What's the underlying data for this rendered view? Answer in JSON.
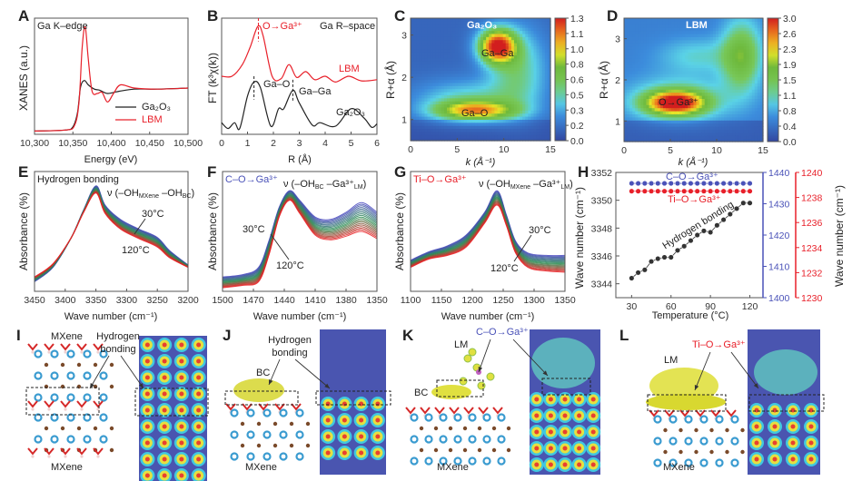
{
  "panels": {
    "A": {
      "letter": "A",
      "title": "Ga K–edge",
      "ylabel": "XANES (a.u.)",
      "xlabel": "Energy (eV)",
      "legend": [
        "Ga₂O₃",
        "LBM"
      ]
    },
    "B": {
      "letter": "B",
      "title": "Ga R–space",
      "ylabel": "FT (k³χ(k))",
      "xlabel": "R (Å)",
      "ann_o_ga": "O→Ga³⁺",
      "ann_lbm": "LBM",
      "ann_gao": "Ga–O",
      "ann_gaga": "Ga–Ga",
      "ann_ga2o3": "Ga₂O₃"
    },
    "C": {
      "letter": "C",
      "label": "Ga₂O₃",
      "ylabel": "R+α (Å)",
      "xlabel": "k (Å⁻¹)",
      "ann_gaga": "Ga–Ga",
      "ann_gao": "Ga–O"
    },
    "D": {
      "letter": "D",
      "label": "LBM",
      "ylabel": "R+α (Å)",
      "xlabel": "k (Å⁻¹)",
      "ann": "O→Ga³⁺"
    },
    "E": {
      "letter": "E",
      "title": "Hydrogen bonding",
      "ylabel": "Absorbance (%)",
      "xlabel": "Wave number (cm⁻¹)",
      "nu": {
        "pre": "ν (–OH",
        "s1": "MXene",
        "mid": " –OH",
        "s2": "BC",
        "post": ")"
      },
      "t_hi": "30°C",
      "t_lo": "120°C"
    },
    "F": {
      "letter": "F",
      "title": "C–O→Ga³⁺",
      "ylabel": "Absorbance (%)",
      "xlabel": "Wave number (cm⁻¹)",
      "nu": {
        "pre": "ν (–OH",
        "s1": "BC",
        "mid": " –Ga³⁺",
        "s2": "LM",
        "post": ")"
      },
      "t_hi": "30°C",
      "t_lo": "120°C"
    },
    "G": {
      "letter": "G",
      "title": "Ti–O→Ga³⁺",
      "ylabel": "Absorbance (%)",
      "xlabel": "Wave number (cm⁻¹)",
      "nu": {
        "pre": "ν (–OH",
        "s1": "MXene",
        "mid": " –Ga³⁺",
        "s2": "LM",
        "post": ")"
      },
      "t_hi": "30°C",
      "t_lo": "120°C"
    },
    "H": {
      "letter": "H",
      "ylabel_left": "Wave number (cm⁻¹)",
      "ylabel_right": "Wave number (cm⁻¹)",
      "xlabel": "Temperature (°C)",
      "ann_co": "C–O→Ga³⁺",
      "ann_tio": "Ti–O→Ga³⁺",
      "ann_hb": "Hydrogen bonding"
    },
    "I": {
      "letter": "I",
      "mxene_top": "MXene",
      "hb": "Hydrogen bonding",
      "mxene_bottom": "MXene"
    },
    "J": {
      "letter": "J",
      "hb": "Hydrogen bonding",
      "bc": "BC",
      "mxene": "MXene"
    },
    "K": {
      "letter": "K",
      "lm": "LM",
      "co": "C–O→Ga³⁺",
      "bc": "BC",
      "mxene": "MXene"
    },
    "L": {
      "letter": "L",
      "lm": "LM",
      "tio": "Ti–O→Ga³⁺",
      "mxene": "MXene"
    }
  },
  "colors": {
    "red": "#e8202a",
    "blue": "#4a52b8",
    "black": "#222222",
    "green": "#2e8b57"
  },
  "chart_data": [
    {
      "panel": "A",
      "type": "line",
      "xlim": [
        10300,
        10500
      ],
      "ylim": [
        0,
        1.08
      ],
      "xticks": [
        10300,
        10350,
        10400,
        10450,
        10500
      ],
      "xtick_labels": [
        "10,300",
        "10,350",
        "10,400",
        "10,450",
        "10,500"
      ],
      "series": [
        {
          "name": "Ga₂O₃",
          "color": "#222222",
          "x": [
            10300,
            10340,
            10350,
            10356,
            10360,
            10365,
            10370,
            10378,
            10385,
            10395,
            10410,
            10430,
            10460,
            10500
          ],
          "y": [
            0.03,
            0.04,
            0.07,
            0.2,
            0.44,
            0.5,
            0.46,
            0.42,
            0.41,
            0.38,
            0.4,
            0.42,
            0.42,
            0.43
          ]
        },
        {
          "name": "LBM",
          "color": "#e8202a",
          "x": [
            10300,
            10340,
            10352,
            10358,
            10362,
            10366,
            10370,
            10375,
            10382,
            10388,
            10395,
            10403,
            10412,
            10430,
            10460,
            10500
          ],
          "y": [
            0.03,
            0.04,
            0.08,
            0.3,
            0.8,
            1.0,
            0.7,
            0.4,
            0.38,
            0.39,
            0.3,
            0.38,
            0.46,
            0.43,
            0.42,
            0.43
          ]
        }
      ]
    },
    {
      "panel": "B",
      "type": "line",
      "xlim": [
        0,
        6
      ],
      "ylim": [
        0,
        1.0
      ],
      "xticks": [
        0,
        1,
        2,
        3,
        4,
        5,
        6
      ],
      "xtick_labels": [
        "0",
        "1",
        "2",
        "3",
        "4",
        "5",
        "6"
      ],
      "series": [
        {
          "name": "LBM",
          "color": "#e8202a",
          "x": [
            0,
            0.4,
            0.8,
            1.1,
            1.4,
            1.6,
            1.95,
            2.3,
            2.6,
            2.9,
            3.25,
            3.6,
            4.0,
            4.4,
            4.9,
            5.4,
            6.0
          ],
          "y": [
            0.5,
            0.5,
            0.6,
            0.75,
            0.93,
            0.85,
            0.5,
            0.48,
            0.6,
            0.49,
            0.54,
            0.47,
            0.5,
            0.45,
            0.5,
            0.46,
            0.47
          ]
        },
        {
          "name": "Ga₂O₃",
          "color": "#222222",
          "x": [
            0,
            0.25,
            0.5,
            0.7,
            1.0,
            1.25,
            1.5,
            1.9,
            2.2,
            2.4,
            2.75,
            3.0,
            3.5,
            3.8,
            4.4,
            5.0,
            5.5,
            5.8,
            6.0
          ],
          "y": [
            0.1,
            0.05,
            0.1,
            0.05,
            0.33,
            0.45,
            0.4,
            0.07,
            0.22,
            0.22,
            0.38,
            0.27,
            0.08,
            0.1,
            0.07,
            0.22,
            0.14,
            0.06,
            0.09
          ]
        }
      ]
    },
    {
      "panel": "C",
      "type": "heatmap",
      "xlim": [
        0,
        15
      ],
      "ylim": [
        0.5,
        3.4
      ],
      "xticks": [
        0,
        5,
        10,
        15
      ],
      "yticks": [
        1,
        2,
        3
      ],
      "colorbar_ticks": [
        "1.3",
        "1.1",
        "1.0",
        "0.8",
        "0.6",
        "0.5",
        "0.3",
        "0.2",
        "0.0"
      ],
      "zlim": [
        0,
        1.3
      ],
      "background": 0.12,
      "peaks": [
        {
          "label": "Ga–Ga",
          "k": 9.3,
          "R": 2.75,
          "intensity": 1.15,
          "k_width": 1.4,
          "R_width": 0.28
        },
        {
          "label": "Ga–O",
          "k": 7.0,
          "R": 1.22,
          "intensity": 0.75,
          "k_width": 3.0,
          "R_width": 0.16
        },
        {
          "k": 6.0,
          "R": 1.45,
          "intensity": 0.35,
          "k_width": 4.0,
          "R_width": 0.35
        },
        {
          "k": 11.5,
          "R": 2.2,
          "intensity": 0.4,
          "k_width": 2.2,
          "R_width": 0.7
        }
      ]
    },
    {
      "panel": "D",
      "type": "heatmap",
      "xlim": [
        0,
        15
      ],
      "ylim": [
        0.5,
        3.5
      ],
      "xticks": [
        0,
        5,
        10,
        15
      ],
      "yticks": [
        1,
        2,
        3
      ],
      "colorbar_ticks": [
        "3.0",
        "2.6",
        "2.3",
        "1.9",
        "1.5",
        "1.1",
        "0.8",
        "0.4",
        "0.0"
      ],
      "zlim": [
        0,
        3.0
      ],
      "background": 0.5,
      "peaks": [
        {
          "label": "O→Ga³⁺",
          "k": 5.5,
          "R": 1.45,
          "intensity": 2.4,
          "k_width": 2.2,
          "R_width": 0.2
        },
        {
          "k": 6.0,
          "R": 1.55,
          "intensity": 0.7,
          "k_width": 4.0,
          "R_width": 0.4
        },
        {
          "k": 12.7,
          "R": 2.6,
          "intensity": 1.2,
          "k_width": 1.5,
          "R_width": 0.6
        },
        {
          "k": 8.0,
          "R": 2.6,
          "intensity": 0.5,
          "k_width": 3.0,
          "R_width": 0.3
        }
      ]
    },
    {
      "panel": "E",
      "type": "line",
      "xlim": [
        3450,
        3200
      ],
      "ylim": [
        0,
        1.0
      ],
      "xticks": [
        3450,
        3400,
        3350,
        3300,
        3250,
        3200
      ],
      "xtick_labels": [
        "3450",
        "3400",
        "3350",
        "3300",
        "3250",
        "3200"
      ],
      "temperatures_range": [
        30,
        120
      ],
      "curve_count": 19,
      "series": [
        {
          "name": "30°C",
          "x": [
            3450,
            3420,
            3390,
            3370,
            3350,
            3335,
            3310,
            3280,
            3250,
            3230,
            3200
          ],
          "y": [
            0.08,
            0.2,
            0.45,
            0.68,
            0.88,
            0.72,
            0.6,
            0.52,
            0.45,
            0.34,
            0.22
          ]
        },
        {
          "name": "120°C",
          "x": [
            3450,
            3420,
            3390,
            3370,
            3350,
            3335,
            3310,
            3280,
            3250,
            3230,
            3200
          ],
          "y": [
            0.12,
            0.23,
            0.45,
            0.66,
            0.82,
            0.65,
            0.52,
            0.44,
            0.37,
            0.28,
            0.2
          ]
        }
      ]
    },
    {
      "panel": "F",
      "type": "line",
      "xlim": [
        1500,
        1350
      ],
      "ylim": [
        0,
        1.0
      ],
      "xticks": [
        1500,
        1470,
        1440,
        1410,
        1380,
        1350
      ],
      "xtick_labels": [
        "1500",
        "1470",
        "1440",
        "1410",
        "1380",
        "1350"
      ],
      "temperatures_range": [
        30,
        120
      ],
      "curve_count": 19,
      "series": [
        {
          "name": "30°C",
          "x": [
            1500,
            1480,
            1465,
            1455,
            1445,
            1435,
            1425,
            1410,
            1395,
            1380,
            1365,
            1350
          ],
          "y": [
            0.12,
            0.14,
            0.2,
            0.42,
            0.7,
            0.84,
            0.76,
            0.62,
            0.6,
            0.66,
            0.74,
            0.66
          ]
        },
        {
          "name": "120°C",
          "x": [
            1500,
            1480,
            1465,
            1455,
            1445,
            1435,
            1425,
            1410,
            1395,
            1380,
            1365,
            1350
          ],
          "y": [
            0.03,
            0.05,
            0.08,
            0.3,
            0.62,
            0.76,
            0.65,
            0.47,
            0.43,
            0.46,
            0.5,
            0.44
          ]
        }
      ]
    },
    {
      "panel": "G",
      "type": "line",
      "xlim": [
        1100,
        1350
      ],
      "ylim": [
        0,
        1.0
      ],
      "xticks": [
        1100,
        1150,
        1200,
        1250,
        1300,
        1350
      ],
      "xtick_labels": [
        "1100",
        "1150",
        "1200",
        "1250",
        "1300",
        "1350"
      ],
      "temperatures_range": [
        30,
        120
      ],
      "curve_count": 19,
      "series": [
        {
          "name": "30°C",
          "x": [
            1100,
            1130,
            1160,
            1190,
            1220,
            1240,
            1255,
            1270,
            1290,
            1320,
            1350
          ],
          "y": [
            0.26,
            0.33,
            0.38,
            0.47,
            0.66,
            0.84,
            0.64,
            0.42,
            0.32,
            0.3,
            0.3
          ]
        },
        {
          "name": "120°C",
          "x": [
            1100,
            1130,
            1160,
            1190,
            1220,
            1240,
            1255,
            1270,
            1290,
            1320,
            1350
          ],
          "y": [
            0.2,
            0.27,
            0.3,
            0.37,
            0.57,
            0.72,
            0.55,
            0.32,
            0.2,
            0.17,
            0.16
          ]
        }
      ]
    },
    {
      "panel": "H",
      "type": "scatter",
      "xlim": [
        18,
        130
      ],
      "xticks": [
        30,
        60,
        90,
        120
      ],
      "xtick_labels": [
        "30",
        "60",
        "90",
        "120"
      ],
      "axes": {
        "left": {
          "ylim": [
            3343,
            3352
          ],
          "ticks": [
            3344,
            3346,
            3348,
            3350,
            3352
          ],
          "color": "#222222"
        },
        "right_blue": {
          "ylim": [
            1400,
            1440
          ],
          "ticks": [
            1400,
            1410,
            1420,
            1430,
            1440
          ],
          "color": "#4a52b8"
        },
        "right_red": {
          "ylim": [
            1230,
            1240
          ],
          "ticks": [
            1230,
            1232,
            1234,
            1236,
            1238,
            1240
          ],
          "color": "#e8202a"
        }
      },
      "x": [
        30,
        35,
        40,
        45,
        50,
        55,
        60,
        65,
        70,
        75,
        80,
        85,
        90,
        95,
        100,
        105,
        110,
        115,
        120
      ],
      "series": [
        {
          "name": "Hydrogen bonding",
          "axis": "left",
          "color": "#333333",
          "y": [
            3344.4,
            3344.8,
            3345.0,
            3345.6,
            3345.8,
            3345.9,
            3345.9,
            3346.4,
            3346.7,
            3347.1,
            3347.5,
            3347.8,
            3347.7,
            3348.2,
            3348.6,
            3349.0,
            3349.4,
            3349.8,
            3349.8
          ]
        },
        {
          "name": "C–O→Ga³⁺",
          "axis": "right_blue",
          "color": "#4a52b8",
          "y": [
            1436.5,
            1436.5,
            1436.5,
            1436.5,
            1436.5,
            1436.5,
            1436.5,
            1436.5,
            1436.5,
            1436.5,
            1436.5,
            1436.5,
            1436.5,
            1436.5,
            1436.5,
            1436.5,
            1436.5,
            1436.5,
            1436.5
          ]
        },
        {
          "name": "Ti–O→Ga³⁺",
          "axis": "right_red",
          "color": "#e8202a",
          "y": [
            1238.5,
            1238.5,
            1238.5,
            1238.5,
            1238.5,
            1238.5,
            1238.5,
            1238.5,
            1238.5,
            1238.5,
            1238.5,
            1238.5,
            1238.5,
            1238.5,
            1238.5,
            1238.5,
            1238.5,
            1238.5,
            1238.5
          ]
        }
      ]
    }
  ]
}
